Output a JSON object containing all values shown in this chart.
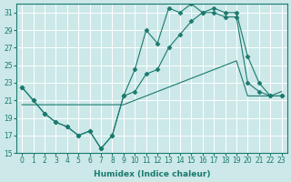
{
  "title": "",
  "xlabel": "Humidex (Indice chaleur)",
  "ylabel": "",
  "background_color": "#cce8e8",
  "grid_color": "#ffffff",
  "line_color": "#1a7a6e",
  "xlim": [
    -0.5,
    23.5
  ],
  "ylim": [
    15,
    32
  ],
  "yticks": [
    15,
    17,
    19,
    21,
    23,
    25,
    27,
    29,
    31
  ],
  "xticks": [
    0,
    1,
    2,
    3,
    4,
    5,
    6,
    7,
    8,
    9,
    10,
    11,
    12,
    13,
    14,
    15,
    16,
    17,
    18,
    19,
    20,
    21,
    22,
    23
  ],
  "series": [
    {
      "x": [
        0,
        1,
        2,
        3,
        4,
        5,
        6,
        7,
        8,
        9,
        10,
        11,
        12,
        13,
        14,
        15,
        16,
        17,
        18,
        19,
        20,
        21,
        22,
        23
      ],
      "y": [
        22.5,
        21.0,
        19.5,
        18.5,
        18.0,
        17.0,
        17.5,
        15.5,
        17.0,
        21.5,
        24.5,
        29.0,
        27.5,
        31.5,
        31.0,
        32.0,
        31.0,
        31.5,
        31.0,
        31.0,
        26.0,
        23.0,
        21.5,
        21.5
      ],
      "marker": "D",
      "markersize": 2.5,
      "has_marker": true
    },
    {
      "x": [
        0,
        1,
        2,
        3,
        4,
        5,
        6,
        7,
        8,
        9,
        10,
        11,
        12,
        13,
        14,
        15,
        16,
        17,
        18,
        19,
        20,
        21,
        22,
        23
      ],
      "y": [
        22.5,
        21.0,
        19.5,
        18.5,
        18.0,
        17.0,
        17.5,
        15.5,
        17.0,
        21.5,
        22.0,
        24.0,
        24.5,
        27.0,
        28.5,
        30.0,
        31.0,
        31.0,
        30.5,
        30.5,
        23.0,
        22.0,
        21.5,
        21.5
      ],
      "marker": "D",
      "markersize": 2.5,
      "has_marker": true
    },
    {
      "x": [
        0,
        1,
        2,
        3,
        4,
        5,
        6,
        7,
        8,
        9,
        10,
        11,
        12,
        13,
        14,
        15,
        16,
        17,
        18,
        19,
        20,
        21,
        22,
        23
      ],
      "y": [
        20.5,
        20.5,
        20.5,
        20.5,
        20.5,
        20.5,
        20.5,
        20.5,
        20.5,
        20.5,
        21.0,
        21.5,
        22.0,
        22.5,
        23.0,
        23.5,
        24.0,
        24.5,
        25.0,
        25.5,
        21.5,
        21.5,
        21.5,
        22.0
      ],
      "marker": null,
      "markersize": 0,
      "has_marker": false
    }
  ]
}
